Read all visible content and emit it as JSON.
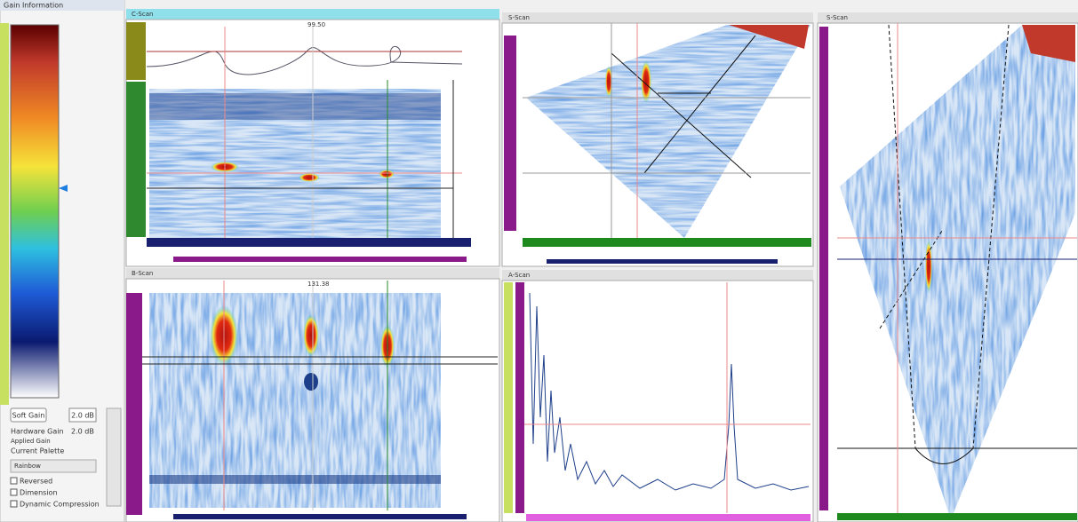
{
  "left_panel": {
    "title": "Gain Information",
    "soft_gain_button": "Soft Gain",
    "soft_gain_value": "2.0 dB",
    "hardware_gain_label": "Hardware Gain",
    "hardware_gain_value": "2.0 dB",
    "applied_gain_label": "Applied Gain",
    "current_palette_label": "Current Palette",
    "palette": "Rainbow",
    "options": [
      "Reversed",
      "Dimension",
      "Dynamic Compression"
    ]
  },
  "views": [
    {
      "title": "C-Scan"
    },
    {
      "title": "S-Scan"
    },
    {
      "title": "S-Scan"
    },
    {
      "title": "B-Scan"
    },
    {
      "title": "A-Scan"
    }
  ],
  "cursors": [
    "99.50",
    "131.38"
  ]
}
